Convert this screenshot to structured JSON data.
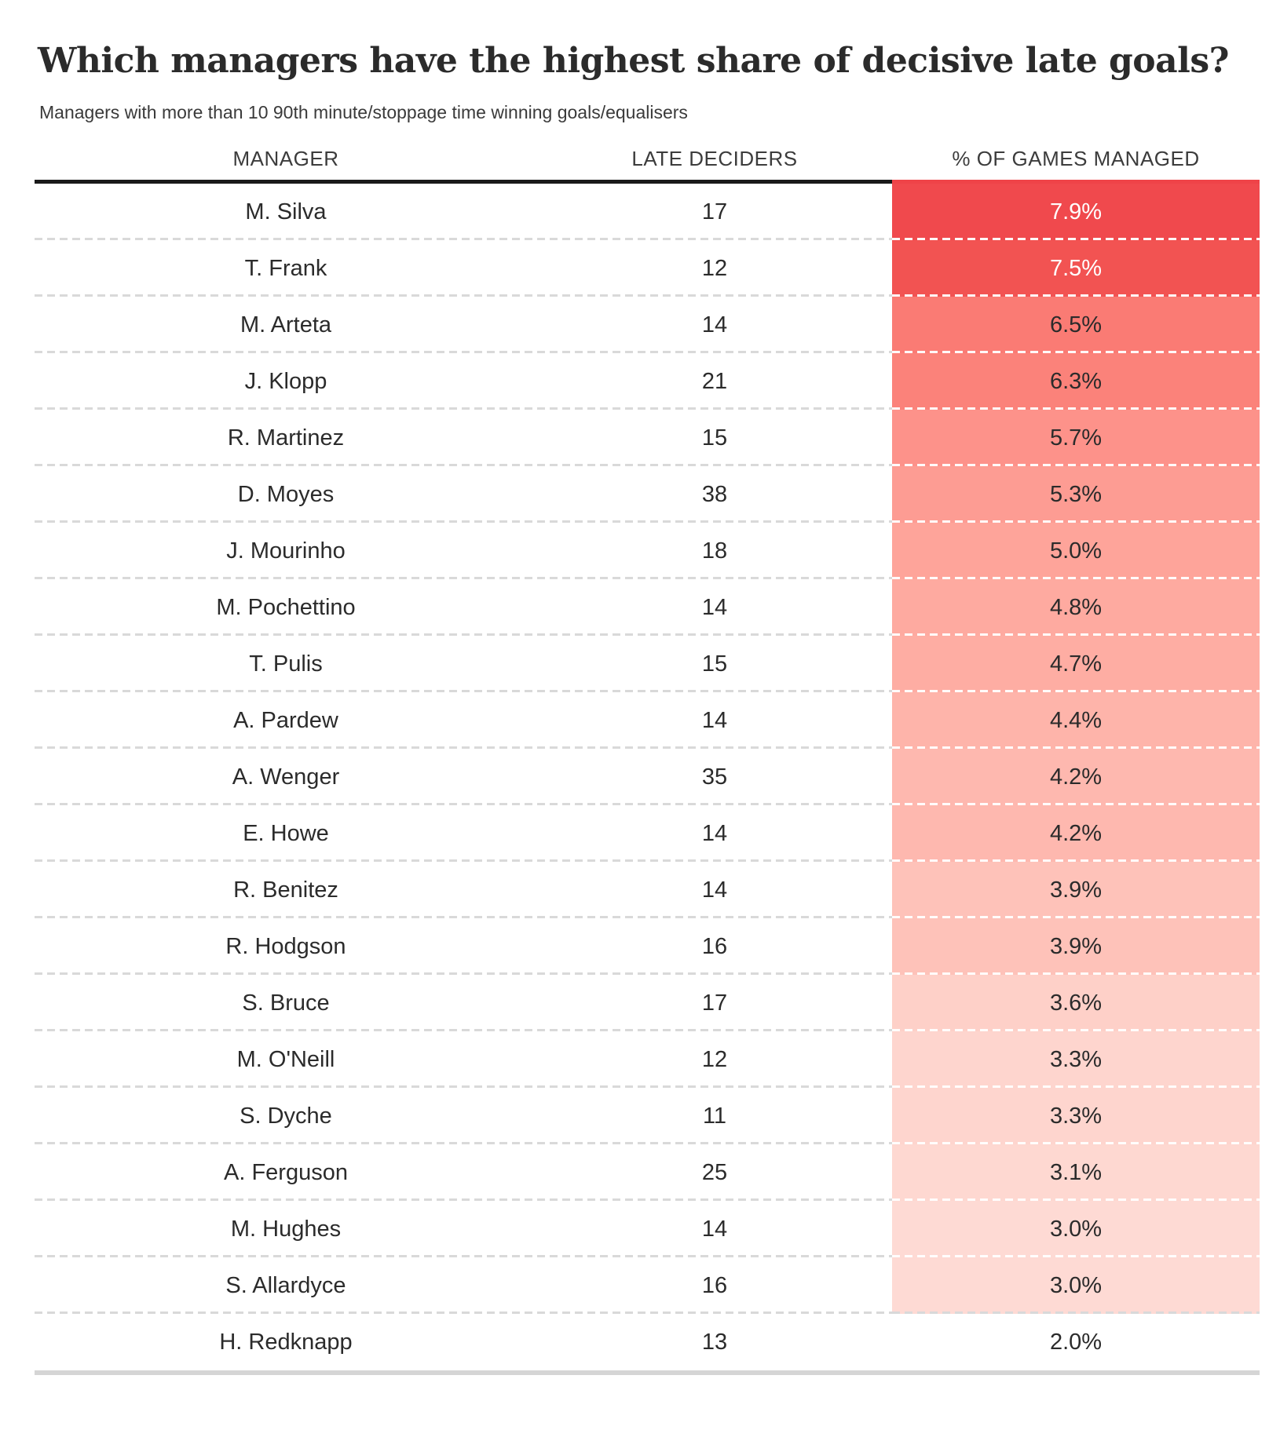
{
  "title": "Which managers have the highest share of decisive late goals?",
  "subtitle": "Managers with more than 10 90th minute/stoppage time winning goals/equalisers",
  "table": {
    "headers": {
      "manager": "MANAGER",
      "late_deciders": "LATE DECIDERS",
      "pct": "% OF GAMES MANAGED"
    },
    "rows": [
      {
        "manager": "M. Silva",
        "late_deciders": "17",
        "pct": "7.9%",
        "bg": "#F0494D",
        "text": "#FFFFFF"
      },
      {
        "manager": "T. Frank",
        "late_deciders": "12",
        "pct": "7.5%",
        "bg": "#F25352",
        "text": "#FFFFFF"
      },
      {
        "manager": "M. Arteta",
        "late_deciders": "14",
        "pct": "6.5%",
        "bg": "#FA7B74",
        "text": "#2B2B2B"
      },
      {
        "manager": "J. Klopp",
        "late_deciders": "21",
        "pct": "6.3%",
        "bg": "#FB827A",
        "text": "#2B2B2B"
      },
      {
        "manager": "R. Martinez",
        "late_deciders": "15",
        "pct": "5.7%",
        "bg": "#FD928A",
        "text": "#2B2B2B"
      },
      {
        "manager": "D. Moyes",
        "late_deciders": "38",
        "pct": "5.3%",
        "bg": "#FD9C93",
        "text": "#2B2B2B"
      },
      {
        "manager": "J. Mourinho",
        "late_deciders": "18",
        "pct": "5.0%",
        "bg": "#FEA49A",
        "text": "#2B2B2B"
      },
      {
        "manager": "M. Pochettino",
        "late_deciders": "14",
        "pct": "4.8%",
        "bg": "#FEAAA0",
        "text": "#2B2B2B"
      },
      {
        "manager": "T. Pulis",
        "late_deciders": "15",
        "pct": "4.7%",
        "bg": "#FEADA3",
        "text": "#2B2B2B"
      },
      {
        "manager": "A. Pardew",
        "late_deciders": "14",
        "pct": "4.4%",
        "bg": "#FEB4AA",
        "text": "#2B2B2B"
      },
      {
        "manager": "A. Wenger",
        "late_deciders": "35",
        "pct": "4.2%",
        "bg": "#FEB8AF",
        "text": "#2B2B2B"
      },
      {
        "manager": "E. Howe",
        "late_deciders": "14",
        "pct": "4.2%",
        "bg": "#FEB8AF",
        "text": "#2B2B2B"
      },
      {
        "manager": "R. Benitez",
        "late_deciders": "14",
        "pct": "3.9%",
        "bg": "#FEC2B9",
        "text": "#2B2B2B"
      },
      {
        "manager": "R. Hodgson",
        "late_deciders": "16",
        "pct": "3.9%",
        "bg": "#FEC2B9",
        "text": "#2B2B2B"
      },
      {
        "manager": "S. Bruce",
        "late_deciders": "17",
        "pct": "3.6%",
        "bg": "#FED0C8",
        "text": "#2B2B2B"
      },
      {
        "manager": "M. O'Neill",
        "late_deciders": "12",
        "pct": "3.3%",
        "bg": "#FED5CE",
        "text": "#2B2B2B"
      },
      {
        "manager": "S. Dyche",
        "late_deciders": "11",
        "pct": "3.3%",
        "bg": "#FED5CE",
        "text": "#2B2B2B"
      },
      {
        "manager": "A. Ferguson",
        "late_deciders": "25",
        "pct": "3.1%",
        "bg": "#FED8D1",
        "text": "#2B2B2B"
      },
      {
        "manager": "M. Hughes",
        "late_deciders": "14",
        "pct": "3.0%",
        "bg": "#FEDAD4",
        "text": "#2B2B2B"
      },
      {
        "manager": "S. Allardyce",
        "late_deciders": "16",
        "pct": "3.0%",
        "bg": "#FEDAD4",
        "text": "#2B2B2B"
      },
      {
        "manager": "H. Redknapp",
        "late_deciders": "13",
        "pct": "2.0%",
        "bg": "#FFFFFF",
        "text": "#2B2B2B"
      }
    ]
  },
  "colors": {
    "header_rule_black": "#1A1A1A",
    "header_rule_red": "#EF4348",
    "separator_gray": "#D9D9D9",
    "bottom_bar": "#D5D5D5",
    "title_text": "#2B2B2B",
    "body_text": "#2B2B2B",
    "heat_max": "#F0494D",
    "heat_min": "#FFFFFF"
  },
  "chart_data": {
    "type": "heatmap",
    "title": "Which managers have the highest share of decisive late goals?",
    "subtitle": "Managers with more than 10 90th minute/stoppage time winning goals/equalisers",
    "columns": [
      "MANAGER",
      "LATE DECIDERS",
      "% OF GAMES MANAGED"
    ],
    "rows": [
      [
        "M. Silva",
        17,
        7.9
      ],
      [
        "T. Frank",
        12,
        7.5
      ],
      [
        "M. Arteta",
        14,
        6.5
      ],
      [
        "J. Klopp",
        21,
        6.3
      ],
      [
        "R. Martinez",
        15,
        5.7
      ],
      [
        "D. Moyes",
        38,
        5.3
      ],
      [
        "J. Mourinho",
        18,
        5.0
      ],
      [
        "M. Pochettino",
        14,
        4.8
      ],
      [
        "T. Pulis",
        15,
        4.7
      ],
      [
        "A. Pardew",
        14,
        4.4
      ],
      [
        "A. Wenger",
        35,
        4.2
      ],
      [
        "E. Howe",
        14,
        4.2
      ],
      [
        "R. Benitez",
        14,
        3.9
      ],
      [
        "R. Hodgson",
        16,
        3.9
      ],
      [
        "S. Bruce",
        17,
        3.6
      ],
      [
        "M. O'Neill",
        12,
        3.3
      ],
      [
        "S. Dyche",
        11,
        3.3
      ],
      [
        "A. Ferguson",
        25,
        3.1
      ],
      [
        "M. Hughes",
        14,
        3.0
      ],
      [
        "S. Allardyce",
        16,
        3.0
      ],
      [
        "H. Redknapp",
        13,
        2.0
      ]
    ],
    "heat_column": "% OF GAMES MANAGED",
    "heat_scale": {
      "min": 2.0,
      "max": 7.9,
      "min_color": "#FFFFFF",
      "max_color": "#F0494D"
    },
    "legend_position": "none",
    "grid": "dashed-row-separators"
  }
}
